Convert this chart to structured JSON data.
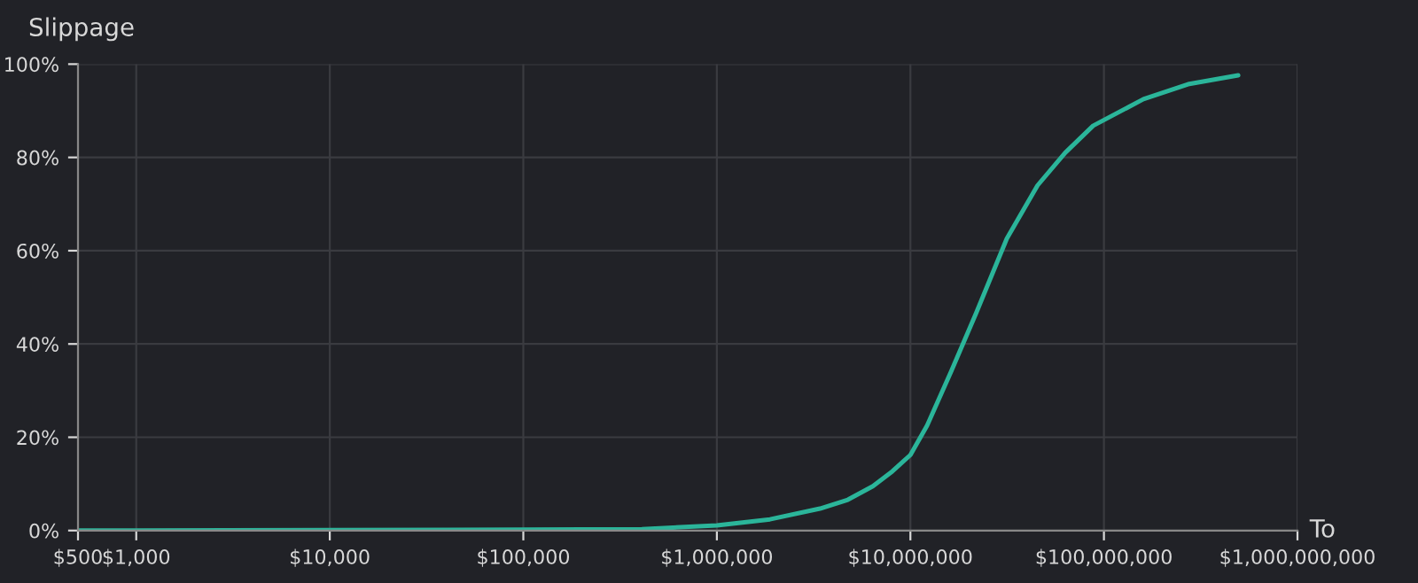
{
  "chart_data": {
    "type": "line",
    "title": "Slippage",
    "xlabel": "To",
    "log": "x",
    "grid": true,
    "legend": false,
    "marker": "none",
    "line_style": "solid",
    "x": [
      500,
      1000,
      10000,
      100000,
      410000,
      1000000,
      1880000,
      3410000,
      4750000,
      6400000,
      8070000,
      10000000,
      12200000,
      16200000,
      21900000,
      31500000,
      45400000,
      63100000,
      88000000,
      160000000,
      272000000,
      494000000
    ],
    "series": [
      {
        "color": "#2bb59a",
        "values": [
          0,
          0,
          0.1,
          0.2,
          0.3,
          1.1,
          2.4,
          4.7,
          6.6,
          9.5,
          12.7,
          16.2,
          22.5,
          34,
          46.7,
          62.6,
          74,
          81,
          86.8,
          92.5,
          95.7,
          97.6
        ]
      }
    ],
    "xlim": [
      500,
      1000000000
    ],
    "xticks": [
      {
        "value": 500,
        "label": "$500"
      },
      {
        "value": 1000,
        "label": "$1,000"
      },
      {
        "value": 10000,
        "label": "$10,000"
      },
      {
        "value": 100000,
        "label": "$100,000"
      },
      {
        "value": 1000000,
        "label": "$1,000,000"
      },
      {
        "value": 10000000,
        "label": "$10,000,000"
      },
      {
        "value": 100000000,
        "label": "$100,000,000"
      },
      {
        "value": 1000000000,
        "label": "$1,000,000,000"
      }
    ],
    "ylim": [
      0,
      100
    ],
    "yticks": [
      {
        "value": 0,
        "label": "0%"
      },
      {
        "value": 20,
        "label": "20%"
      },
      {
        "value": 40,
        "label": "40%"
      },
      {
        "value": 60,
        "label": "60%"
      },
      {
        "value": 80,
        "label": "80%"
      },
      {
        "value": 100,
        "label": "100%"
      }
    ]
  }
}
